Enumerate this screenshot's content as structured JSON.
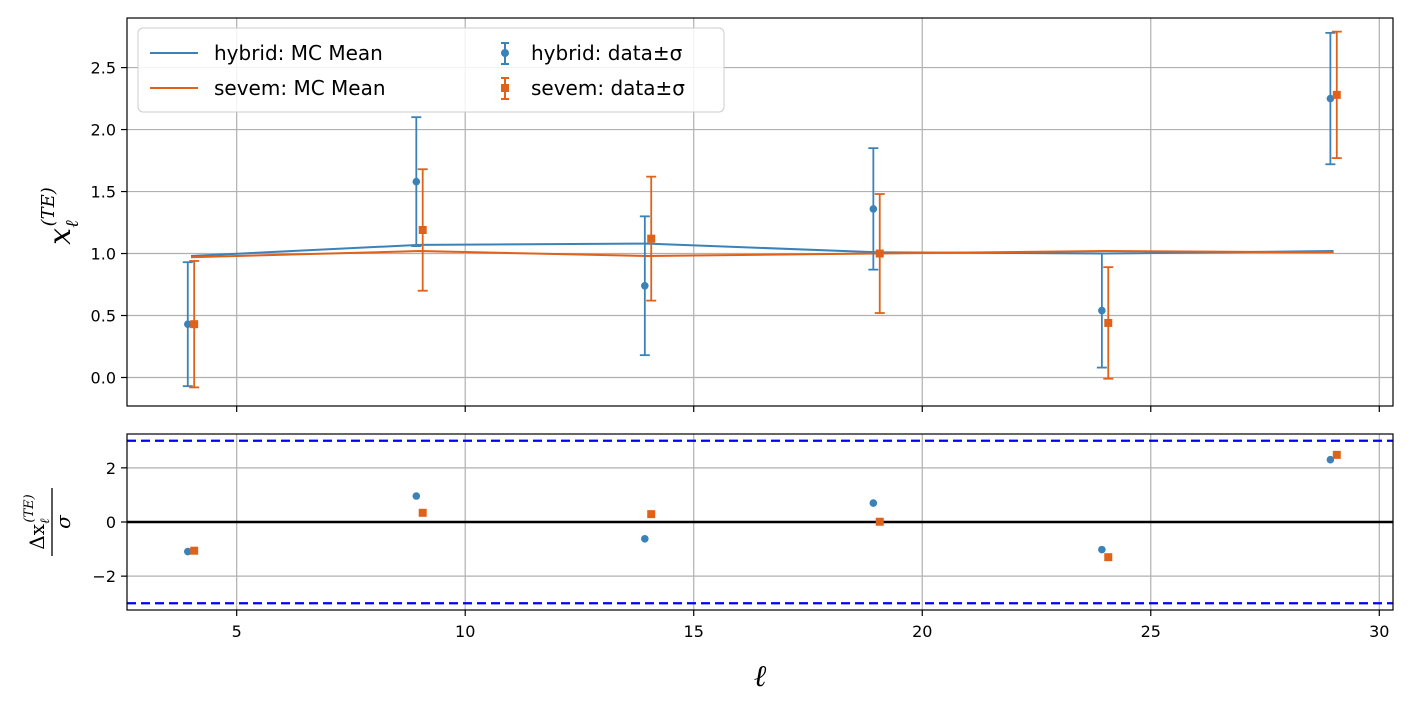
{
  "chart_data": [
    {
      "type": "scatter",
      "panel": "top",
      "ylabel_main": "x",
      "ylabel_sub": "ℓ",
      "ylabel_sup": "(TE)",
      "xlim": [
        2.6,
        30.3
      ],
      "ylim": [
        -0.23,
        2.9
      ],
      "yticks": [
        0.0,
        0.5,
        1.0,
        1.5,
        2.0,
        2.5
      ],
      "ytick_labels": [
        "0.0",
        "0.5",
        "1.0",
        "1.5",
        "2.0",
        "2.5"
      ],
      "grid": true,
      "legend_placement": "top-left",
      "legend": {
        "hybrid_mean": "hybrid: MC Mean",
        "sevem_mean": "sevem: MC Mean",
        "hybrid_data": "hybrid: data±σ",
        "sevem_data": "sevem: data±σ"
      },
      "series": [
        {
          "name": "hybrid: MC Mean",
          "kind": "line",
          "color": "#3b82b8",
          "x": [
            4,
            9,
            14,
            19,
            24,
            29
          ],
          "y": [
            0.98,
            1.07,
            1.08,
            1.01,
            1.0,
            1.02
          ]
        },
        {
          "name": "sevem: MC Mean",
          "kind": "line",
          "color": "#e0611a",
          "x": [
            4,
            9,
            14,
            19,
            24,
            29
          ],
          "y": [
            0.97,
            1.02,
            0.98,
            1.0,
            1.02,
            1.01
          ]
        },
        {
          "name": "hybrid: data±σ",
          "kind": "errorbar",
          "marker": "circle",
          "color": "#3b82b8",
          "x": [
            3.93,
            8.93,
            13.93,
            18.93,
            23.93,
            28.93
          ],
          "y": [
            0.43,
            1.58,
            0.74,
            1.36,
            0.54,
            2.25
          ],
          "err": [
            0.5,
            0.52,
            0.56,
            0.49,
            0.46,
            0.53
          ]
        },
        {
          "name": "sevem: data±σ",
          "kind": "errorbar",
          "marker": "square",
          "color": "#e0611a",
          "x": [
            4.07,
            9.07,
            14.07,
            19.07,
            24.07,
            29.07
          ],
          "y": [
            0.43,
            1.19,
            1.12,
            1.0,
            0.44,
            2.28
          ],
          "err": [
            0.51,
            0.49,
            0.5,
            0.48,
            0.45,
            0.51
          ]
        }
      ]
    },
    {
      "type": "scatter",
      "panel": "bottom",
      "ylabel_top": "Δx",
      "ylabel_sub": "ℓ",
      "ylabel_sup": "(TE)",
      "ylabel_bottom": "σ",
      "xlabel": "ℓ",
      "xlim": [
        2.6,
        30.3
      ],
      "ylim": [
        -3.25,
        3.25
      ],
      "xticks": [
        5,
        10,
        15,
        20,
        25,
        30
      ],
      "xtick_labels": [
        "5",
        "10",
        "15",
        "20",
        "25",
        "30"
      ],
      "yticks": [
        -2,
        0,
        2
      ],
      "ytick_labels": [
        "−2",
        "0",
        "2"
      ],
      "reference_lines": [
        {
          "y": 3,
          "color": "#0000ff",
          "style": "dashed"
        },
        {
          "y": -3,
          "color": "#0000ff",
          "style": "dashed"
        },
        {
          "y": 0,
          "color": "#000000",
          "style": "solid"
        }
      ],
      "grid": true,
      "series": [
        {
          "marker": "circle",
          "color": "#3b82b8",
          "x": [
            3.93,
            8.93,
            13.93,
            18.93,
            23.93,
            28.93
          ],
          "y": [
            -1.09,
            0.96,
            -0.62,
            0.7,
            -1.02,
            2.3
          ]
        },
        {
          "marker": "square",
          "color": "#e0611a",
          "x": [
            4.07,
            9.07,
            14.07,
            19.07,
            24.07,
            29.07
          ],
          "y": [
            -1.06,
            0.34,
            0.29,
            0.01,
            -1.3,
            2.48
          ]
        }
      ]
    }
  ]
}
